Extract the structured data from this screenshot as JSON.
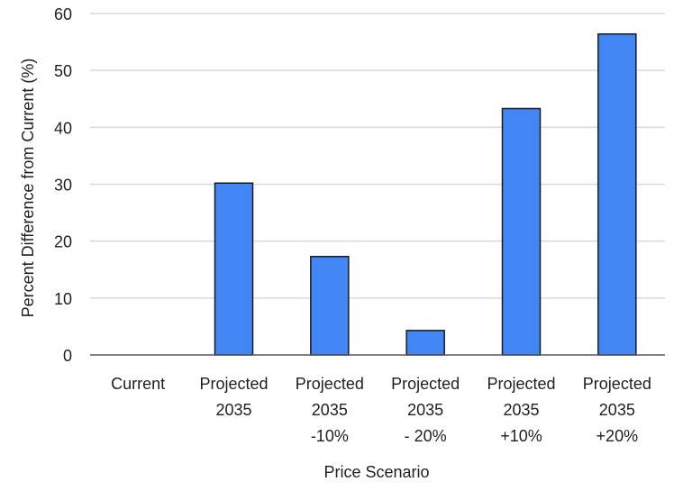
{
  "chart_data": {
    "type": "bar",
    "title": "",
    "xlabel": "Price Scenario",
    "ylabel": "Percent Difference from Current (%)",
    "ylim": [
      0,
      60
    ],
    "yticks": [
      0,
      10,
      20,
      30,
      40,
      50,
      60
    ],
    "grid": "horizontal",
    "legend": "none",
    "categories": [
      [
        "Current"
      ],
      [
        "Projected",
        "2035"
      ],
      [
        "Projected",
        "2035",
        "-10%"
      ],
      [
        "Projected",
        "2035",
        "- 20%"
      ],
      [
        "Projected",
        "2035",
        "+10%"
      ],
      [
        "Projected",
        "2035",
        "+20%"
      ]
    ],
    "values": [
      0,
      30.2,
      17.3,
      4.3,
      43.3,
      56.4
    ],
    "colors": {
      "bar_fill": "#4285F4",
      "bar_stroke": "#1a1a1a",
      "grid": "#d9d9d9",
      "axis": "#595959"
    }
  }
}
